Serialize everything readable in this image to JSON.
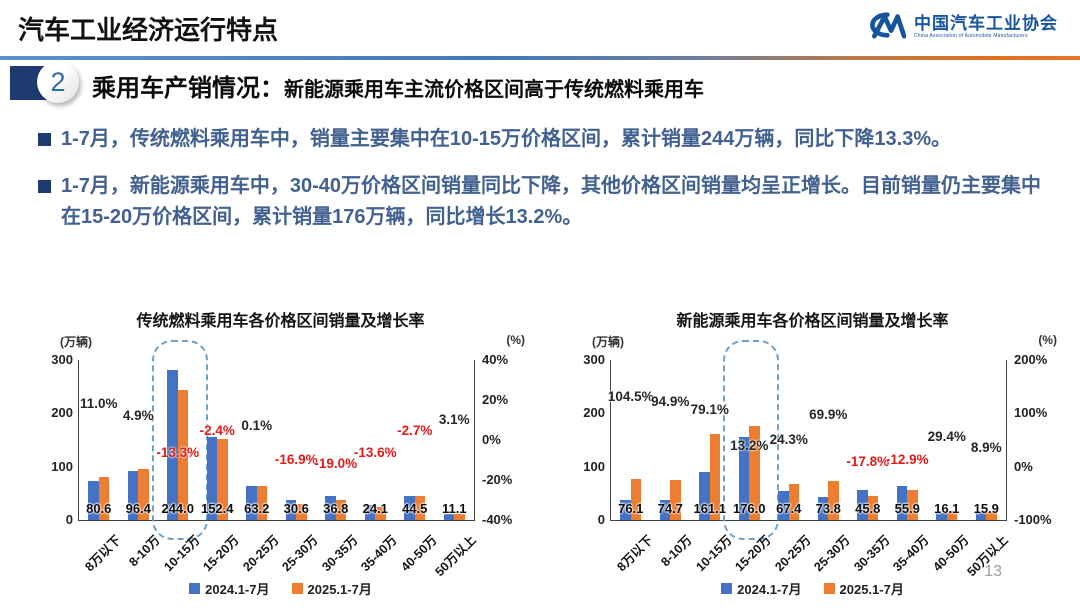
{
  "header": {
    "title": "汽车工业经济运行特点",
    "logo": {
      "org_cn": "中国汽车工业协会",
      "org_en": "China Association of Automobile Manufacturers"
    }
  },
  "section": {
    "number": "2",
    "title": "乘用车产销情况：",
    "subtitle": "新能源乘用车主流价格区间高于传统燃料乘用车"
  },
  "bullets": [
    "1-7月，传统燃料乘用车中，销量主要集中在10-15万价格区间，累计销量244万辆，同比下降13.3%。",
    "1-7月，新能源乘用车中，30-40万价格区间销量同比下降，其他价格区间销量均呈正增长。目前销量仍主要集中在15-20万价格区间，累计销量176万辆，同比增长13.2%。"
  ],
  "page_number": "13",
  "colors": {
    "series_2024": "#4472C4",
    "series_2025": "#ED7D31",
    "growth_positive_label": "#262626",
    "growth_negative_label": "#E21B1B",
    "accent_navy": "#1E3A6E",
    "badge_number": "#2E6DA6",
    "bullet_text": "#42618F",
    "divider_blue": "#3F7AB8",
    "divider_orange": "#E2711D"
  },
  "chart_data": [
    {
      "type": "bar",
      "title": "传统燃料乘用车各价格区间销量及增长率",
      "y_left_label": "(万辆)",
      "y_right_label": "(%)",
      "categories": [
        "8万以下",
        "8-10万",
        "10-15万",
        "15-20万",
        "20-25万",
        "25-30万",
        "30-35万",
        "35-40万",
        "40-50万",
        "50万以上"
      ],
      "series": [
        {
          "name": "2024.1-7月",
          "color": "#4472C4",
          "estimated_from_growth": true,
          "values": [
            72.6,
            91.9,
            281.4,
            156.1,
            63.1,
            36.8,
            45.4,
            27.9,
            45.7,
            10.8
          ]
        },
        {
          "name": "2025.1-7月",
          "color": "#ED7D31",
          "values": [
            80.6,
            96.4,
            244.0,
            152.4,
            63.2,
            30.6,
            36.8,
            24.1,
            44.5,
            11.1
          ]
        }
      ],
      "value_labels": [
        "80.6",
        "96.4",
        "244.0",
        "152.4",
        "63.2",
        "30.6",
        "36.8",
        "24.1",
        "44.5",
        "11.1"
      ],
      "growth_labels": [
        "11.0%",
        "4.9%",
        "-13.3%",
        "-2.4%",
        "0.1%",
        "-16.9%",
        "-19.0%",
        "-13.6%",
        "-2.7%",
        "3.1%"
      ],
      "growth_values": [
        11.0,
        4.9,
        -13.3,
        -2.4,
        0.1,
        -16.9,
        -19.0,
        -13.6,
        -2.7,
        3.1
      ],
      "y_left_ticks": [
        "300",
        "200",
        "100",
        "0"
      ],
      "y_left_max": 300,
      "y_right_ticks": [
        "40%",
        "20%",
        "0%",
        "-20%",
        "-40%"
      ],
      "y_right_range": [
        -40,
        40
      ],
      "highlight_category": "10-15万",
      "highlight_index": 2,
      "grid": false,
      "legend_position": "bottom"
    },
    {
      "type": "bar",
      "title": "新能源乘用车各价格区间销量及增长率",
      "y_left_label": "(万辆)",
      "y_right_label": "(%)",
      "categories": [
        "8万以下",
        "8-10万",
        "10-15万",
        "15-20万",
        "20-25万",
        "25-30万",
        "30-35万",
        "35-40万",
        "40-50万",
        "50万以上"
      ],
      "series": [
        {
          "name": "2024.1-7月",
          "color": "#4472C4",
          "estimated_from_growth": true,
          "values": [
            37.2,
            38.3,
            90.0,
            155.5,
            54.2,
            43.4,
            55.7,
            64.2,
            12.4,
            14.6
          ]
        },
        {
          "name": "2025.1-7月",
          "color": "#ED7D31",
          "values": [
            76.1,
            74.7,
            161.1,
            176.0,
            67.4,
            73.8,
            45.8,
            55.9,
            16.1,
            15.9
          ]
        }
      ],
      "value_labels": [
        "76.1",
        "74.7",
        "161.1",
        "176.0",
        "67.4",
        "73.8",
        "45.8",
        "55.9",
        "16.1",
        "15.9"
      ],
      "growth_labels": [
        "104.5%",
        "94.9%",
        "79.1%",
        "13.2%",
        "24.3%",
        "69.9%",
        "-17.8%",
        "-12.9%",
        "29.4%",
        "8.9%"
      ],
      "growth_values": [
        104.5,
        94.9,
        79.1,
        13.2,
        24.3,
        69.9,
        -17.8,
        -12.9,
        29.4,
        8.9
      ],
      "y_left_ticks": [
        "300",
        "200",
        "100",
        "0"
      ],
      "y_left_max": 300,
      "y_right_ticks": [
        "200%",
        "100%",
        "0%",
        "-100%"
      ],
      "y_right_range": [
        -100,
        200
      ],
      "highlight_category": "15-20万",
      "highlight_index": 3,
      "grid": false,
      "legend_position": "bottom"
    }
  ]
}
